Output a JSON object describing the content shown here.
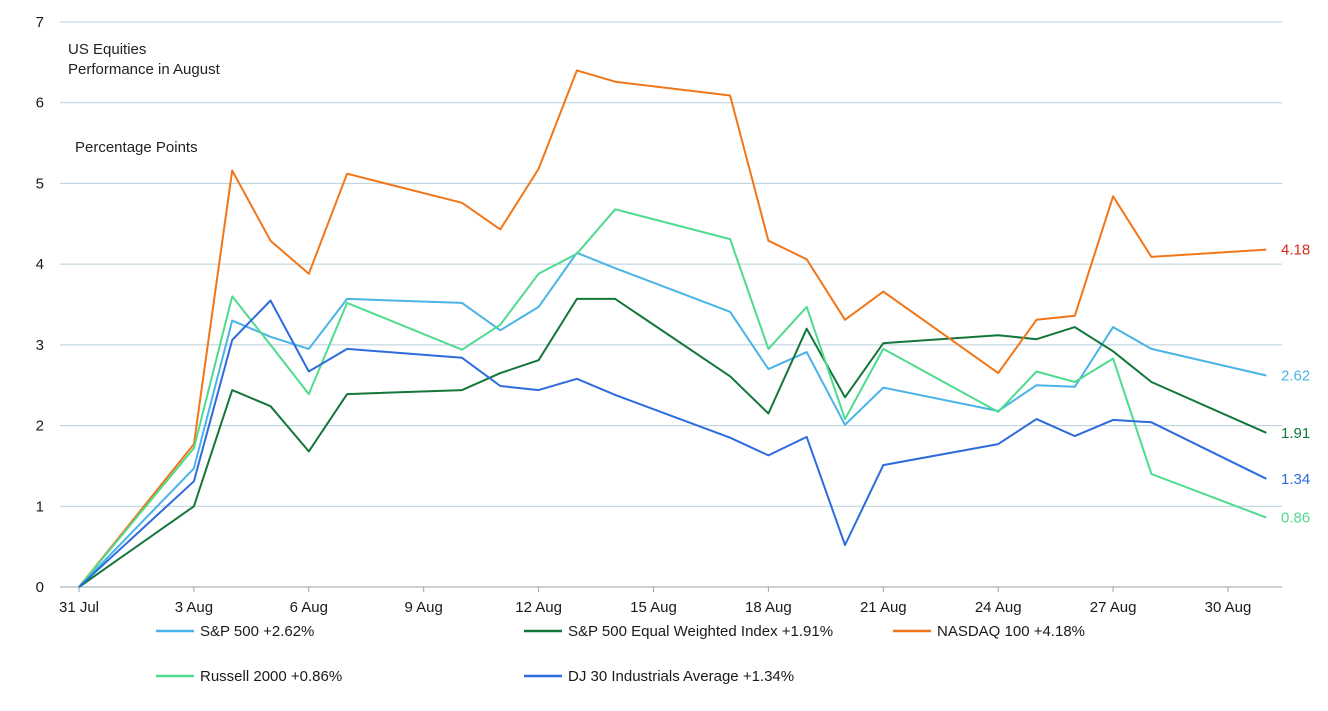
{
  "chart_data": {
    "type": "line",
    "title": "US Equities",
    "subtitle": "Performance in August",
    "ylabel": "Percentage Points",
    "xlabel": "",
    "ylim": [
      0,
      7
    ],
    "y_ticks": [
      "0",
      "1",
      "2",
      "3",
      "4",
      "5",
      "6",
      "7"
    ],
    "grid": true,
    "legend_position": "bottom",
    "x_tick_labels": [
      {
        "day": 0,
        "label": "31 Jul"
      },
      {
        "day": 3,
        "label": "3 Aug"
      },
      {
        "day": 6,
        "label": "6 Aug"
      },
      {
        "day": 9,
        "label": "9 Aug"
      },
      {
        "day": 12,
        "label": "12 Aug"
      },
      {
        "day": 15,
        "label": "15 Aug"
      },
      {
        "day": 18,
        "label": "18 Aug"
      },
      {
        "day": 21,
        "label": "21 Aug"
      },
      {
        "day": 24,
        "label": "24 Aug"
      },
      {
        "day": 27,
        "label": "27 Aug"
      },
      {
        "day": 30,
        "label": "30 Aug"
      }
    ],
    "x_day_range": [
      0,
      32
    ],
    "x_dates": [
      "31 Jul",
      "3 Aug",
      "4 Aug",
      "5 Aug",
      "6 Aug",
      "7 Aug",
      "10 Aug",
      "11 Aug",
      "12 Aug",
      "13 Aug",
      "14 Aug",
      "17 Aug",
      "18 Aug",
      "19 Aug",
      "20 Aug",
      "21 Aug",
      "24 Aug",
      "25 Aug",
      "26 Aug",
      "27 Aug",
      "28 Aug",
      "31 Aug"
    ],
    "x_days": [
      0,
      3,
      4,
      5,
      6,
      7,
      10,
      11,
      12,
      13,
      14,
      17,
      18,
      19,
      20,
      21,
      24,
      25,
      26,
      27,
      28,
      31
    ],
    "series": [
      {
        "name": "S&P 500 +2.62%",
        "color": "#4ab4e6",
        "end_label": "2.62",
        "label_color": "#4ab4e6",
        "values": [
          0,
          1.47,
          3.3,
          3.1,
          2.95,
          3.57,
          3.52,
          3.18,
          3.47,
          4.14,
          3.95,
          3.41,
          2.7,
          2.91,
          2.01,
          2.47,
          2.18,
          2.5,
          2.48,
          3.22,
          2.95,
          2.62
        ]
      },
      {
        "name": "S&P 500 Equal Weighted Index +1.91%",
        "color": "#13763a",
        "end_label": "1.91",
        "label_color": "#13763a",
        "values": [
          0,
          1.0,
          2.44,
          2.24,
          1.68,
          2.39,
          2.44,
          2.65,
          2.81,
          3.57,
          3.57,
          2.61,
          2.15,
          3.2,
          2.35,
          3.02,
          3.12,
          3.07,
          3.22,
          2.92,
          2.54,
          1.91
        ]
      },
      {
        "name": "NASDAQ 100 +4.18%",
        "color": "#f07619",
        "end_label": "4.18",
        "label_color": "#d62a1c",
        "values": [
          0,
          1.77,
          5.16,
          4.29,
          3.88,
          5.12,
          4.76,
          4.43,
          5.18,
          6.4,
          6.26,
          6.09,
          4.29,
          4.06,
          3.31,
          3.66,
          2.65,
          3.31,
          3.36,
          4.84,
          4.09,
          4.18
        ]
      },
      {
        "name": "Russell 2000 +0.86%",
        "color": "#4fdb8e",
        "end_label": "0.86",
        "label_color": "#4fdb8e",
        "values": [
          0,
          1.72,
          3.6,
          3.0,
          2.39,
          3.52,
          2.94,
          3.25,
          3.88,
          4.13,
          4.68,
          4.31,
          2.95,
          3.47,
          2.08,
          2.95,
          2.17,
          2.67,
          2.54,
          2.83,
          1.4,
          0.86
        ]
      },
      {
        "name": "DJ 30 Industrials Average +1.34%",
        "color": "#2e6bdd",
        "end_label": "1.34",
        "label_color": "#2e6bdd",
        "values": [
          0,
          1.31,
          3.06,
          3.55,
          2.67,
          2.95,
          2.84,
          2.49,
          2.44,
          2.58,
          2.38,
          1.85,
          1.63,
          1.86,
          0.52,
          1.51,
          1.77,
          2.08,
          1.87,
          2.07,
          2.04,
          1.34
        ]
      }
    ]
  }
}
